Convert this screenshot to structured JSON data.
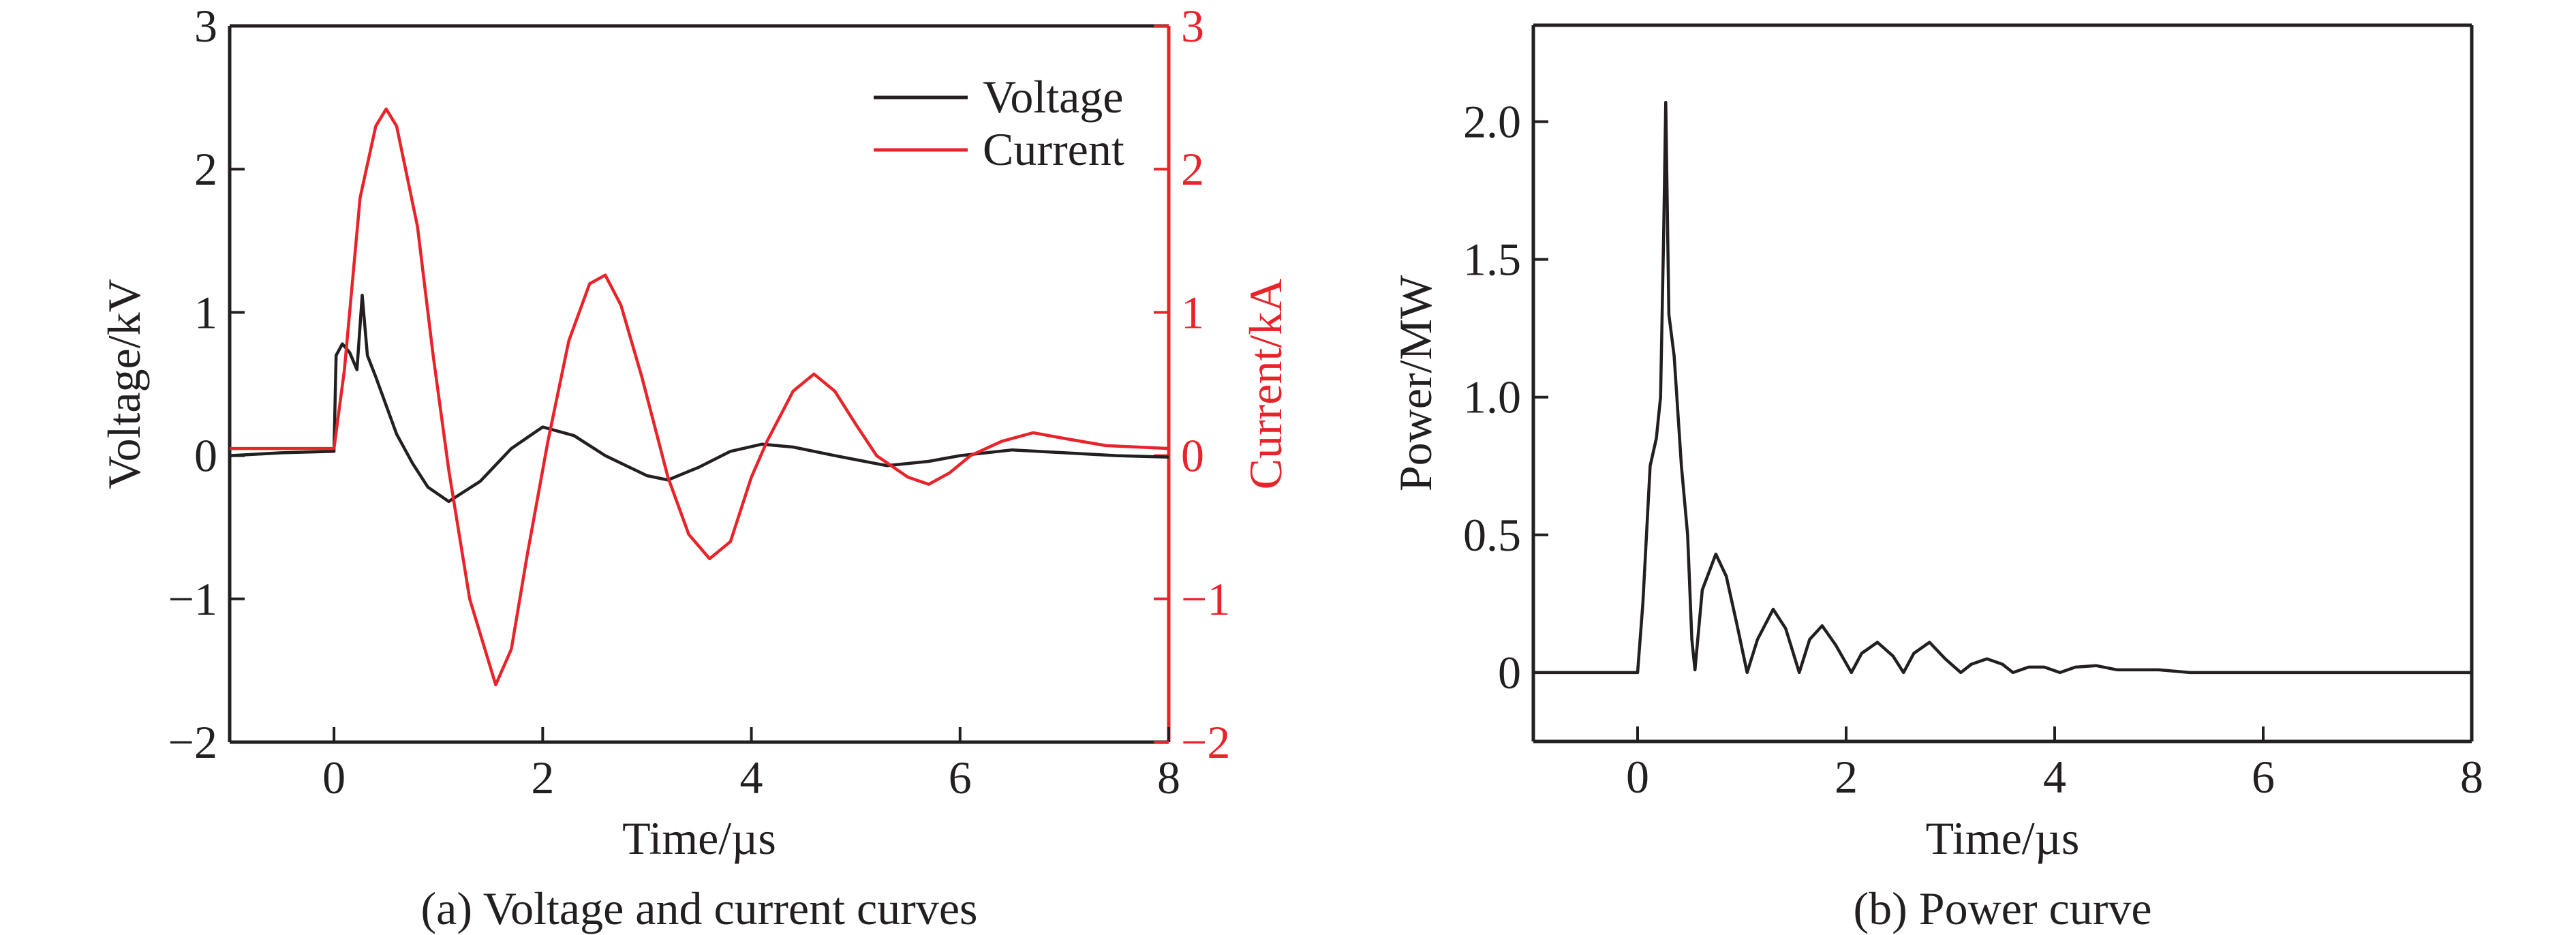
{
  "chart_data": [
    {
      "type": "line",
      "caption": "(a) Voltage and current curves",
      "xlabel": "Time/µs",
      "ylabel": "Voltage/kV",
      "y2label": "Current/kA",
      "xlim": [
        -1,
        8
      ],
      "ylim": [
        -2,
        3
      ],
      "y2lim": [
        -2,
        3
      ],
      "xticks": [
        "0",
        "2",
        "4",
        "6",
        "8"
      ],
      "xtick_values": [
        0,
        2,
        4,
        6,
        8
      ],
      "yticks": [
        "−2",
        "−1",
        "0",
        "1",
        "2",
        "3"
      ],
      "ytick_values": [
        -2,
        -1,
        0,
        1,
        2,
        3
      ],
      "y2ticks": [
        "−2",
        "−1",
        "0",
        "1",
        "2",
        "3"
      ],
      "y2tick_values": [
        -2,
        -1,
        0,
        1,
        2,
        3
      ],
      "legend_position": "top-right",
      "grid": false,
      "series": [
        {
          "name": "Voltage",
          "color": "#231f20",
          "axis": "left",
          "x": [
            -1,
            -0.5,
            0,
            0.02,
            0.08,
            0.15,
            0.22,
            0.27,
            0.32,
            0.4,
            0.5,
            0.6,
            0.75,
            0.9,
            1.1,
            1.4,
            1.7,
            2.0,
            2.3,
            2.6,
            3.0,
            3.2,
            3.5,
            3.8,
            4.1,
            4.4,
            4.8,
            5.3,
            5.7,
            6.0,
            6.5,
            7.0,
            7.5,
            8.0
          ],
          "y": [
            0.0,
            0.02,
            0.03,
            0.7,
            0.78,
            0.72,
            0.6,
            1.12,
            0.7,
            0.55,
            0.35,
            0.15,
            -0.05,
            -0.22,
            -0.32,
            -0.18,
            0.05,
            0.2,
            0.14,
            0.0,
            -0.14,
            -0.17,
            -0.08,
            0.03,
            0.08,
            0.06,
            0.0,
            -0.07,
            -0.04,
            0.0,
            0.04,
            0.02,
            0.0,
            -0.01
          ]
        },
        {
          "name": "Current",
          "color": "#e8242b",
          "axis": "right",
          "x": [
            -1,
            -0.5,
            0,
            0.1,
            0.25,
            0.4,
            0.5,
            0.6,
            0.8,
            0.95,
            1.1,
            1.3,
            1.55,
            1.7,
            1.85,
            2.05,
            2.25,
            2.45,
            2.6,
            2.75,
            2.95,
            3.2,
            3.4,
            3.6,
            3.8,
            4.0,
            4.15,
            4.4,
            4.6,
            4.8,
            5.0,
            5.2,
            5.5,
            5.7,
            5.9,
            6.1,
            6.4,
            6.7,
            7.0,
            7.4,
            8.0
          ],
          "y": [
            0.05,
            0.05,
            0.05,
            0.6,
            1.8,
            2.3,
            2.42,
            2.3,
            1.6,
            0.7,
            -0.1,
            -1.0,
            -1.6,
            -1.35,
            -0.7,
            0.1,
            0.8,
            1.2,
            1.26,
            1.05,
            0.55,
            -0.15,
            -0.55,
            -0.72,
            -0.6,
            -0.15,
            0.1,
            0.45,
            0.57,
            0.45,
            0.22,
            0.0,
            -0.15,
            -0.2,
            -0.12,
            0.0,
            0.1,
            0.16,
            0.12,
            0.07,
            0.05
          ]
        }
      ]
    },
    {
      "type": "line",
      "caption": "(b) Power curve",
      "xlabel": "Time/µs",
      "ylabel": "Power/MW",
      "xlim": [
        -1,
        8
      ],
      "ylim": [
        -0.25,
        2.35
      ],
      "xticks": [
        "0",
        "2",
        "4",
        "6",
        "8"
      ],
      "xtick_values": [
        0,
        2,
        4,
        6,
        8
      ],
      "yticks": [
        "0",
        "0.5",
        "1.0",
        "1.5",
        "2.0"
      ],
      "ytick_values": [
        0,
        0.5,
        1.0,
        1.5,
        2.0
      ],
      "grid": false,
      "series": [
        {
          "name": "Power",
          "color": "#231f20",
          "x": [
            -1,
            -0.5,
            0,
            0.05,
            0.12,
            0.18,
            0.22,
            0.25,
            0.27,
            0.3,
            0.35,
            0.42,
            0.48,
            0.52,
            0.55,
            0.62,
            0.75,
            0.85,
            0.95,
            1.05,
            1.15,
            1.3,
            1.42,
            1.55,
            1.65,
            1.77,
            1.9,
            2.05,
            2.15,
            2.3,
            2.45,
            2.55,
            2.65,
            2.8,
            2.95,
            3.1,
            3.2,
            3.35,
            3.5,
            3.6,
            3.75,
            3.9,
            4.05,
            4.2,
            4.4,
            4.6,
            4.8,
            5.0,
            5.3,
            6.0,
            7.0,
            8.0
          ],
          "y": [
            0.0,
            0.0,
            0.0,
            0.25,
            0.75,
            0.85,
            1.0,
            1.6,
            2.07,
            1.3,
            1.15,
            0.75,
            0.5,
            0.12,
            0.01,
            0.3,
            0.43,
            0.35,
            0.18,
            0.0,
            0.12,
            0.23,
            0.16,
            0.0,
            0.12,
            0.17,
            0.1,
            0.0,
            0.07,
            0.11,
            0.06,
            0.0,
            0.07,
            0.11,
            0.05,
            0.0,
            0.03,
            0.05,
            0.03,
            0.0,
            0.02,
            0.02,
            0.0,
            0.02,
            0.025,
            0.01,
            0.01,
            0.01,
            0.0,
            0.0,
            0.0,
            0.0
          ]
        }
      ]
    }
  ]
}
